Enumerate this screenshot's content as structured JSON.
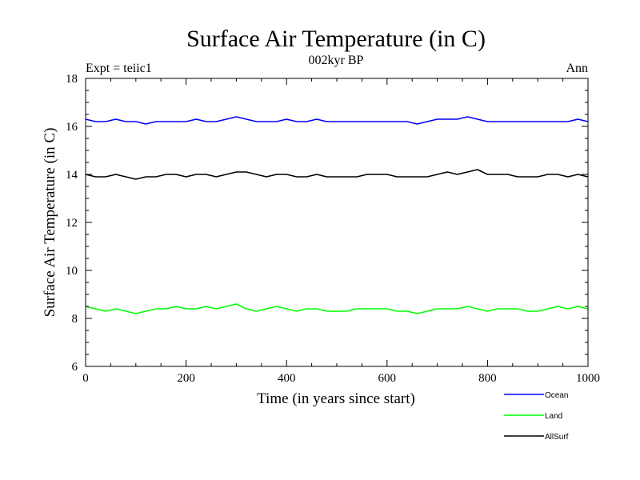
{
  "chart_data": {
    "type": "line",
    "title": "Surface Air Temperature (in C)",
    "subtitle": "002kyr BP",
    "left_label": "Expt = teiic1",
    "right_label": "Ann",
    "xlabel": "Time (in years since start)",
    "ylabel": "Surface Air Temperature (in C)",
    "xlim": [
      0,
      1000
    ],
    "ylim": [
      6,
      18
    ],
    "x_ticks": [
      0,
      200,
      400,
      600,
      800,
      1000
    ],
    "y_ticks": [
      6,
      8,
      10,
      12,
      14,
      16,
      18
    ],
    "grid": false,
    "legend_position": "bottom-right",
    "series": [
      {
        "name": "Ocean",
        "color": "#0000ff",
        "x_start": 0,
        "x_step": 20,
        "values": [
          16.3,
          16.2,
          16.2,
          16.3,
          16.2,
          16.2,
          16.1,
          16.2,
          16.2,
          16.2,
          16.2,
          16.3,
          16.2,
          16.2,
          16.3,
          16.4,
          16.3,
          16.2,
          16.2,
          16.2,
          16.3,
          16.2,
          16.2,
          16.3,
          16.2,
          16.2,
          16.2,
          16.2,
          16.2,
          16.2,
          16.2,
          16.2,
          16.2,
          16.1,
          16.2,
          16.3,
          16.3,
          16.3,
          16.4,
          16.3,
          16.2,
          16.2,
          16.2,
          16.2,
          16.2,
          16.2,
          16.2,
          16.2,
          16.2,
          16.3,
          16.2
        ]
      },
      {
        "name": "Land",
        "color": "#00ff00",
        "x_start": 0,
        "x_step": 20,
        "values": [
          8.5,
          8.4,
          8.3,
          8.4,
          8.3,
          8.2,
          8.3,
          8.4,
          8.4,
          8.5,
          8.4,
          8.4,
          8.5,
          8.4,
          8.5,
          8.6,
          8.4,
          8.3,
          8.4,
          8.5,
          8.4,
          8.3,
          8.4,
          8.4,
          8.3,
          8.3,
          8.3,
          8.4,
          8.4,
          8.4,
          8.4,
          8.3,
          8.3,
          8.2,
          8.3,
          8.4,
          8.4,
          8.4,
          8.5,
          8.4,
          8.3,
          8.4,
          8.4,
          8.4,
          8.3,
          8.3,
          8.4,
          8.5,
          8.4,
          8.5,
          8.4
        ]
      },
      {
        "name": "AllSurf",
        "color": "#000000",
        "x_start": 0,
        "x_step": 20,
        "values": [
          14.0,
          13.9,
          13.9,
          14.0,
          13.9,
          13.8,
          13.9,
          13.9,
          14.0,
          14.0,
          13.9,
          14.0,
          14.0,
          13.9,
          14.0,
          14.1,
          14.1,
          14.0,
          13.9,
          14.0,
          14.0,
          13.9,
          13.9,
          14.0,
          13.9,
          13.9,
          13.9,
          13.9,
          14.0,
          14.0,
          14.0,
          13.9,
          13.9,
          13.9,
          13.9,
          14.0,
          14.1,
          14.0,
          14.1,
          14.2,
          14.0,
          14.0,
          14.0,
          13.9,
          13.9,
          13.9,
          14.0,
          14.0,
          13.9,
          14.0,
          13.9
        ]
      }
    ]
  }
}
